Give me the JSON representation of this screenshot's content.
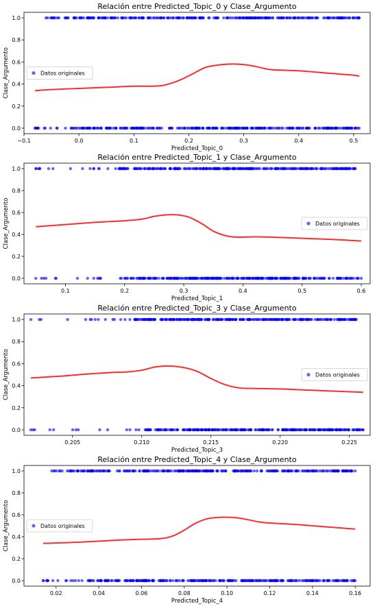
{
  "chart_data": [
    {
      "type": "scatter",
      "title": "Relación entre Predicted_Topic_0 y Clase_Argumento",
      "xlabel": "Predicted_Topic_0",
      "ylabel": "Clase_Argumento",
      "xlim": [
        -0.1,
        0.53
      ],
      "ylim": [
        -0.05,
        1.05
      ],
      "xticks": [
        -0.1,
        0.0,
        0.1,
        0.2,
        0.3,
        0.4,
        0.5
      ],
      "xtick_labels": [
        "−0.1",
        "0.0",
        "0.1",
        "0.2",
        "0.3",
        "0.4",
        "0.5"
      ],
      "yticks": [
        0.0,
        0.2,
        0.4,
        0.6,
        0.8,
        1.0
      ],
      "ytick_labels": [
        "0.0",
        "0.2",
        "0.4",
        "0.6",
        "0.8",
        "1.0"
      ],
      "legend": {
        "label": "Datos originales",
        "position": "center-left"
      },
      "grid": false,
      "points_y1": {
        "x_range": [
          -0.06,
          0.51
        ],
        "dense_from": -0.01
      },
      "points_y0": {
        "x_range": [
          -0.08,
          0.51
        ],
        "dense_from": -0.01
      },
      "trend": {
        "name": "trend",
        "x": [
          -0.08,
          -0.05,
          0.0,
          0.05,
          0.1,
          0.13,
          0.15,
          0.17,
          0.19,
          0.21,
          0.23,
          0.25,
          0.27,
          0.29,
          0.31,
          0.33,
          0.35,
          0.4,
          0.45,
          0.5,
          0.51
        ],
        "y": [
          0.34,
          0.35,
          0.36,
          0.37,
          0.38,
          0.38,
          0.385,
          0.41,
          0.45,
          0.5,
          0.55,
          0.57,
          0.58,
          0.58,
          0.57,
          0.55,
          0.53,
          0.52,
          0.5,
          0.48,
          0.47
        ]
      }
    },
    {
      "type": "scatter",
      "title": "Relación entre Predicted_Topic_1 y Clase_Argumento",
      "xlabel": "Predicted_Topic_1",
      "ylabel": "Clase_Argumento",
      "xlim": [
        0.03,
        0.615
      ],
      "ylim": [
        -0.05,
        1.05
      ],
      "xticks": [
        0.1,
        0.2,
        0.3,
        0.4,
        0.5,
        0.6
      ],
      "xtick_labels": [
        "0.1",
        "0.2",
        "0.3",
        "0.4",
        "0.5",
        "0.6"
      ],
      "yticks": [
        0.0,
        0.2,
        0.4,
        0.6,
        0.8,
        1.0
      ],
      "ytick_labels": [
        "0.0",
        "0.2",
        "0.4",
        "0.6",
        "0.8",
        "1.0"
      ],
      "legend": {
        "label": "Datos originales",
        "position": "center-right"
      },
      "grid": false,
      "points_y1": {
        "x_range": [
          0.05,
          0.59
        ],
        "dense_from": 0.18
      },
      "points_y0": {
        "x_range": [
          0.05,
          0.6
        ],
        "dense_from": 0.2
      },
      "trend": {
        "name": "trend",
        "x": [
          0.05,
          0.1,
          0.15,
          0.2,
          0.23,
          0.25,
          0.27,
          0.29,
          0.31,
          0.33,
          0.35,
          0.37,
          0.39,
          0.42,
          0.45,
          0.5,
          0.55,
          0.6
        ],
        "y": [
          0.47,
          0.49,
          0.51,
          0.525,
          0.54,
          0.565,
          0.578,
          0.578,
          0.555,
          0.5,
          0.43,
          0.39,
          0.375,
          0.378,
          0.375,
          0.365,
          0.355,
          0.34
        ]
      }
    },
    {
      "type": "scatter",
      "title": "Relación entre Predicted_Topic_3 y Clase_Argumento",
      "xlabel": "Predicted_Topic_3",
      "ylabel": "Clase_Argumento",
      "xlim": [
        0.2015,
        0.2265
      ],
      "ylim": [
        -0.05,
        1.05
      ],
      "xticks": [
        0.205,
        0.21,
        0.215,
        0.22,
        0.225
      ],
      "xtick_labels": [
        "0.205",
        "0.210",
        "0.215",
        "0.220",
        "0.225"
      ],
      "yticks": [
        0.0,
        0.2,
        0.4,
        0.6,
        0.8,
        1.0
      ],
      "ytick_labels": [
        "0.0",
        "0.2",
        "0.4",
        "0.6",
        "0.8",
        "1.0"
      ],
      "legend": {
        "label": "Datos originales",
        "position": "center-right"
      },
      "grid": false,
      "points_y1": {
        "x_range": [
          0.202,
          0.2255
        ],
        "dense_from": 0.2095
      },
      "points_y0": {
        "x_range": [
          0.202,
          0.226
        ],
        "dense_from": 0.2103
      },
      "trend": {
        "name": "trend",
        "x": [
          0.202,
          0.204,
          0.206,
          0.208,
          0.209,
          0.21,
          0.211,
          0.212,
          0.213,
          0.214,
          0.215,
          0.216,
          0.217,
          0.218,
          0.22,
          0.222,
          0.224,
          0.226
        ],
        "y": [
          0.47,
          0.485,
          0.505,
          0.52,
          0.525,
          0.54,
          0.57,
          0.578,
          0.565,
          0.53,
          0.465,
          0.41,
          0.38,
          0.375,
          0.37,
          0.36,
          0.35,
          0.34
        ]
      }
    },
    {
      "type": "scatter",
      "title": "Relación entre Predicted_Topic_4 y Clase_Argumento",
      "xlabel": "Predicted_Topic_4",
      "ylabel": "Clase_Argumento",
      "xlim": [
        0.005,
        0.167
      ],
      "ylim": [
        -0.05,
        1.05
      ],
      "xticks": [
        0.02,
        0.04,
        0.06,
        0.08,
        0.1,
        0.12,
        0.14,
        0.16
      ],
      "xtick_labels": [
        "0.02",
        "0.04",
        "0.06",
        "0.08",
        "0.10",
        "0.12",
        "0.14",
        "0.16"
      ],
      "yticks": [
        0.0,
        0.2,
        0.4,
        0.6,
        0.8,
        1.0
      ],
      "ytick_labels": [
        "0.0",
        "0.2",
        "0.4",
        "0.6",
        "0.8",
        "1.0"
      ],
      "legend": {
        "label": "Datos originales",
        "position": "center-left"
      },
      "grid": false,
      "points_y1": {
        "x_range": [
          0.018,
          0.16
        ],
        "dense_from": 0.03
      },
      "points_y0": {
        "x_range": [
          0.014,
          0.16
        ],
        "dense_from": 0.035
      },
      "trend": {
        "name": "trend",
        "x": [
          0.014,
          0.03,
          0.05,
          0.065,
          0.07,
          0.075,
          0.08,
          0.085,
          0.09,
          0.095,
          0.1,
          0.105,
          0.11,
          0.115,
          0.12,
          0.13,
          0.14,
          0.15,
          0.16
        ],
        "y": [
          0.34,
          0.35,
          0.37,
          0.38,
          0.385,
          0.41,
          0.46,
          0.52,
          0.56,
          0.575,
          0.578,
          0.572,
          0.555,
          0.535,
          0.525,
          0.515,
          0.5,
          0.485,
          0.47
        ]
      }
    }
  ],
  "colors": {
    "points": "#0000ff",
    "trend": "#ff2a2a",
    "axes": "#000000",
    "background": "#ffffff"
  }
}
